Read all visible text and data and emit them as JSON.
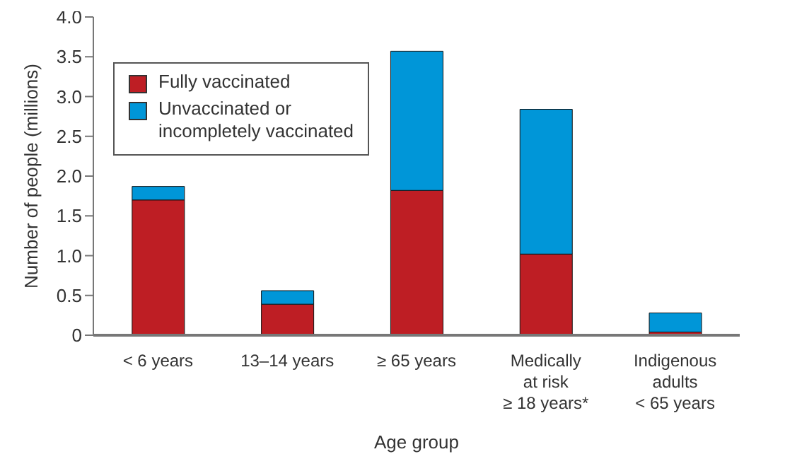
{
  "chart_data": {
    "type": "bar",
    "stacked": true,
    "xlabel": "Age group",
    "ylabel": "Number of people (millions)",
    "categories": [
      "< 6 years",
      "13–14 years",
      "≥ 65 years",
      "Medically\nat risk\n≥ 18 years*",
      "Indigenous\nadults\n< 65 years"
    ],
    "series": [
      {
        "name": "Fully vaccinated",
        "color": "#be1e24",
        "values": [
          1.7,
          0.39,
          1.82,
          1.02,
          0.04
        ]
      },
      {
        "name": "Unvaccinated or\nincompletely vaccinated",
        "color": "#0096d8",
        "values": [
          0.17,
          0.17,
          1.75,
          1.82,
          0.24
        ]
      }
    ],
    "ylim": [
      0,
      4
    ],
    "yticks": [
      0,
      0.5,
      {
        "value": 1,
        "label": "1.0"
      },
      1.5,
      {
        "value": 2,
        "label": "2.0"
      },
      2.5,
      {
        "value": 3,
        "label": "3.0"
      },
      3.5,
      {
        "value": 4,
        "label": "4.0"
      }
    ],
    "grid": false,
    "legend": "top left"
  }
}
